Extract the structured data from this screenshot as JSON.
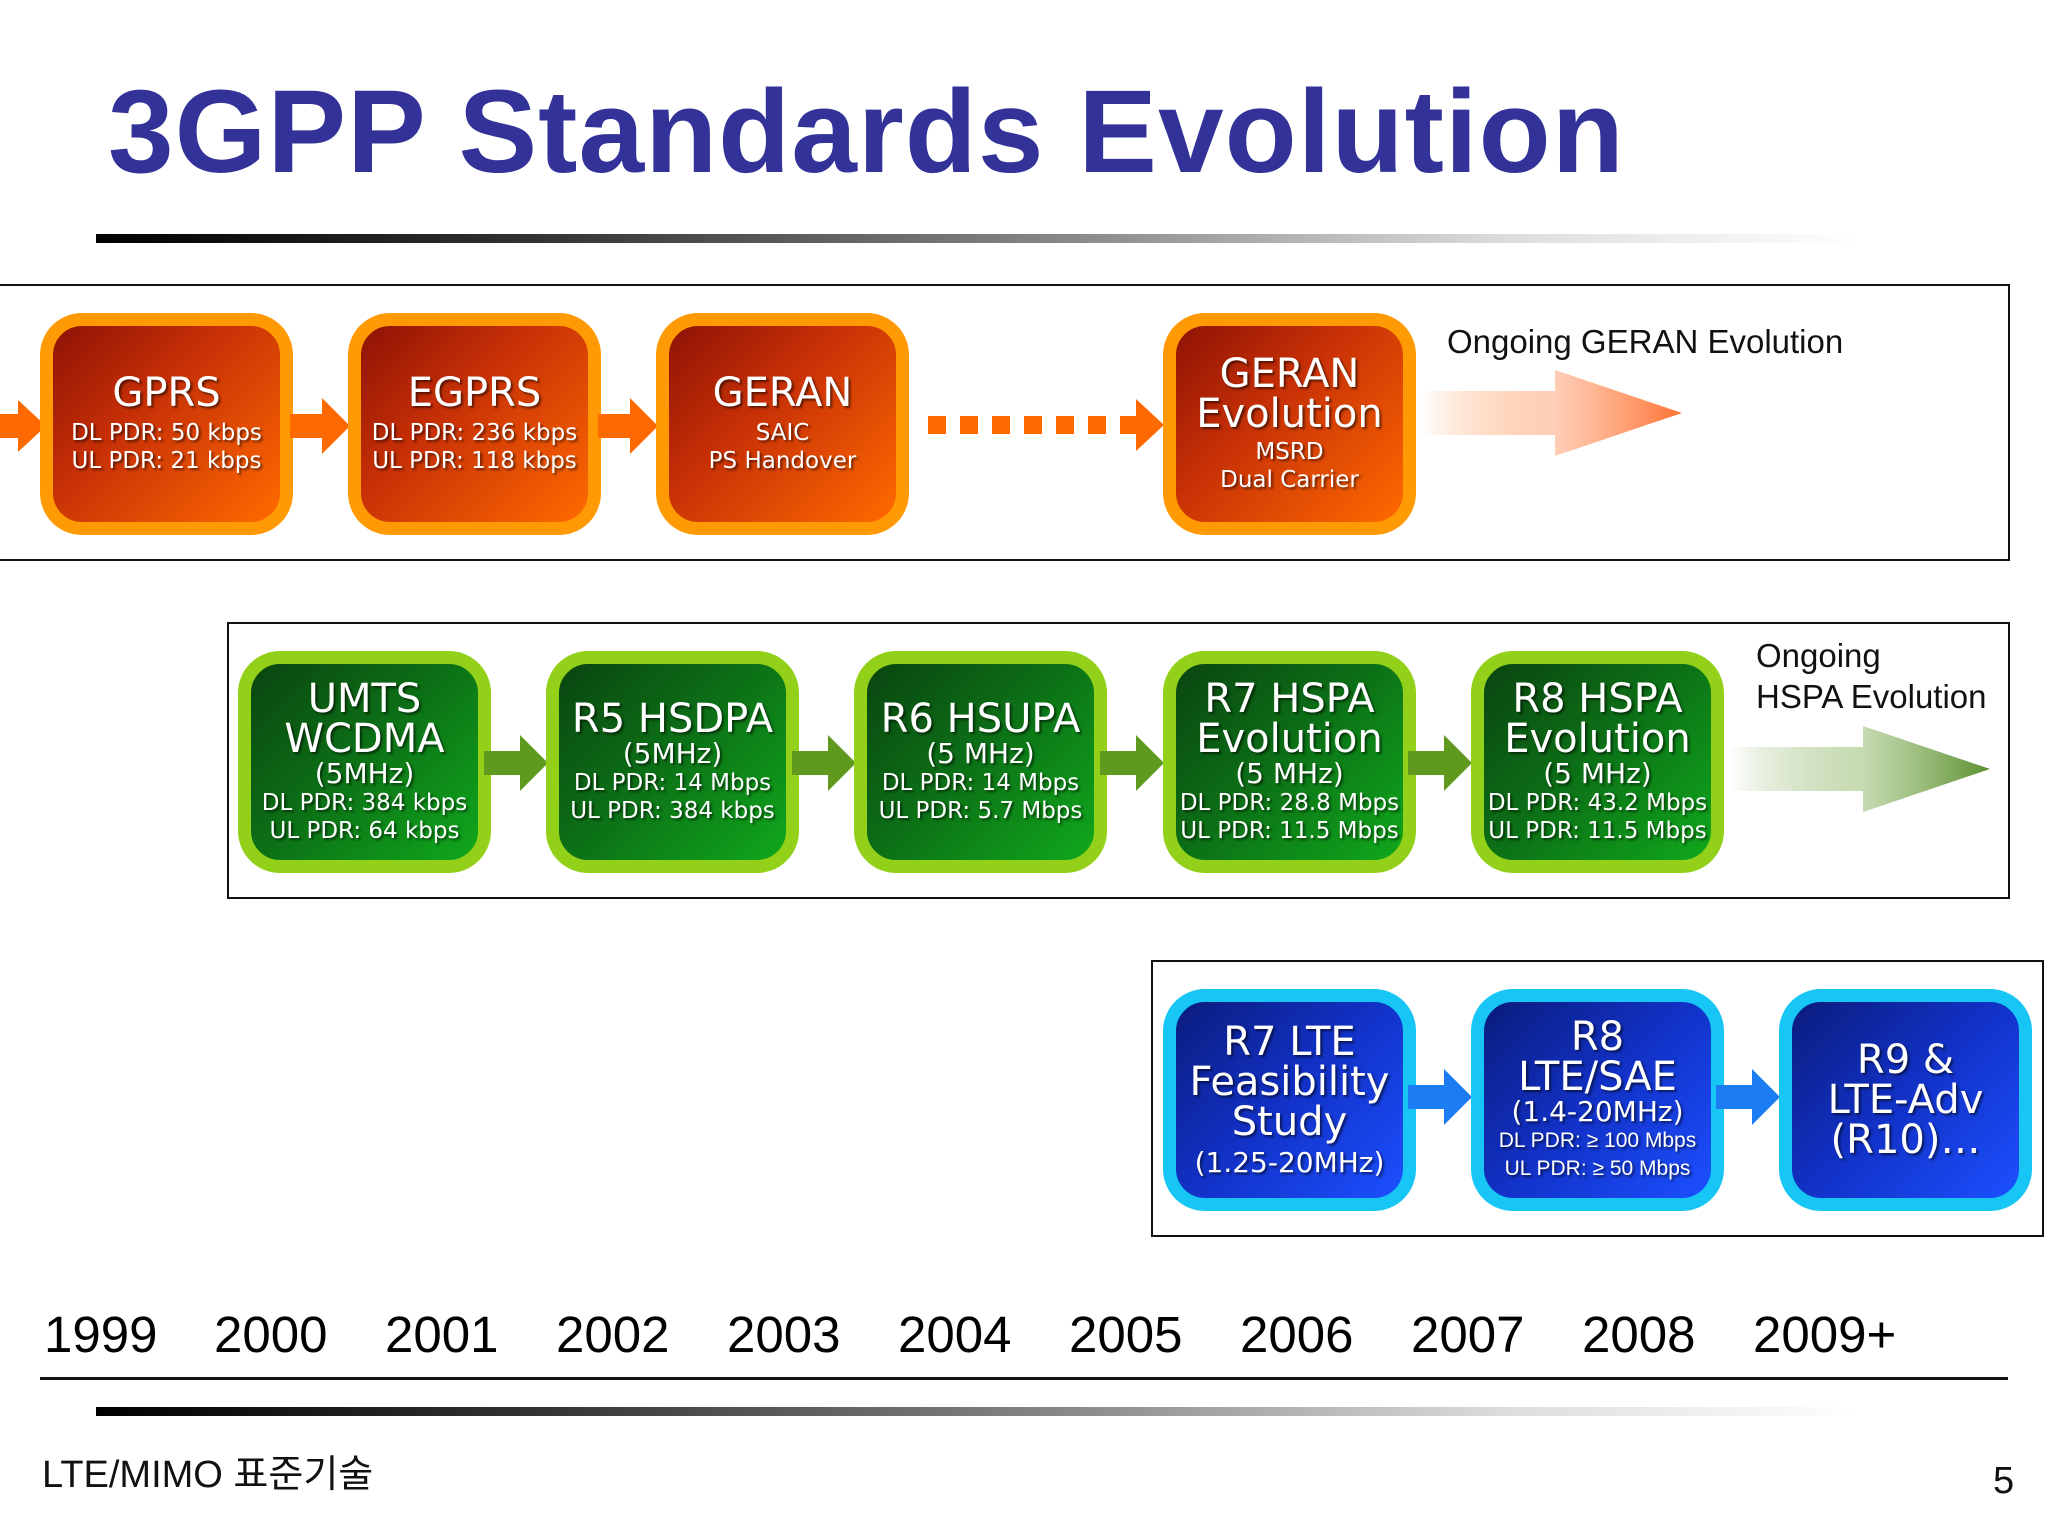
{
  "title": "3GPP Standards Evolution",
  "geran_track": {
    "boxes": [
      {
        "title": "GPRS",
        "lines": [
          "DL PDR: 50 kbps",
          "UL PDR: 21 kbps"
        ]
      },
      {
        "title": "EGPRS",
        "lines": [
          "DL PDR: 236 kbps",
          "UL PDR: 118 kbps"
        ]
      },
      {
        "title": "GERAN",
        "lines": [
          "SAIC",
          "PS Handover"
        ]
      },
      {
        "title_lines": [
          "GERAN",
          "Evolution"
        ],
        "lines": [
          "MSRD",
          "Dual Carrier"
        ]
      }
    ],
    "ongoing": "Ongoing GERAN Evolution",
    "color": "#ff6a00"
  },
  "hspa_track": {
    "boxes": [
      {
        "title_lines": [
          "UMTS",
          "WCDMA"
        ],
        "subtitle": "(5MHz)",
        "lines": [
          "DL PDR: 384 kbps",
          "UL PDR: 64 kbps"
        ]
      },
      {
        "title": "R5 HSDPA",
        "subtitle": "(5MHz)",
        "lines": [
          "DL PDR: 14 Mbps",
          "UL PDR: 384 kbps"
        ]
      },
      {
        "title": "R6 HSUPA",
        "subtitle": "(5 MHz)",
        "lines": [
          "DL PDR: 14 Mbps",
          "UL PDR: 5.7 Mbps"
        ]
      },
      {
        "title_lines": [
          "R7 HSPA",
          "Evolution"
        ],
        "subtitle": "(5 MHz)",
        "lines": [
          "DL PDR: 28.8 Mbps",
          "UL PDR: 11.5 Mbps"
        ]
      },
      {
        "title_lines": [
          "R8 HSPA",
          "Evolution"
        ],
        "subtitle": "(5 MHz)",
        "lines": [
          "DL PDR: 43.2 Mbps",
          "UL PDR: 11.5 Mbps"
        ]
      }
    ],
    "ongoing_lines": [
      "Ongoing",
      "HSPA Evolution"
    ],
    "color": "#5f9a1e"
  },
  "lte_track": {
    "boxes": [
      {
        "title_lines": [
          "R7 LTE",
          "Feasibility",
          "Study"
        ],
        "subtitle": "(1.25-20MHz)"
      },
      {
        "title_lines": [
          "R8",
          "LTE/SAE"
        ],
        "subtitle": "(1.4-20MHz)",
        "lines": [
          "DL PDR: ≥ 100 Mbps",
          "UL PDR: ≥ 50 Mbps"
        ]
      },
      {
        "title_lines": [
          "R9 &",
          "LTE-Adv",
          "(R10)…"
        ]
      }
    ],
    "color": "#1c7cf2"
  },
  "timeline": [
    "1999",
    "2000",
    "2001",
    "2002",
    "2003",
    "2004",
    "2005",
    "2006",
    "2007",
    "2008",
    "2009+"
  ],
  "footer": "LTE/MIMO 표준기술",
  "page_number": "5"
}
